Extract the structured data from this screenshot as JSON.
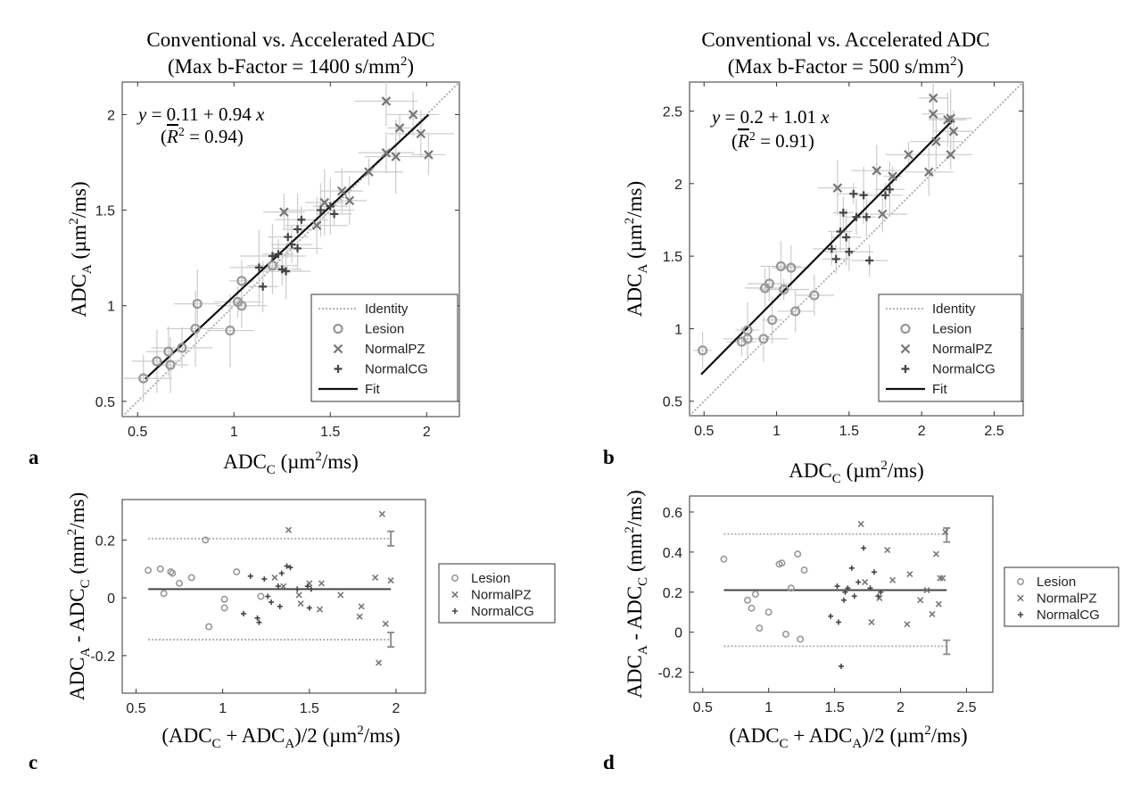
{
  "chart_data": [
    {
      "id": "a",
      "panel_label": "a",
      "type": "scatter",
      "title_line1": "Conventional vs. Accelerated ADC",
      "title_line2_pre": "(Max b-Factor = 1400 s/mm",
      "title_line2_sup": "2",
      "title_line2_post": ")",
      "xlabel": {
        "main": "ADC",
        "sub": "C",
        "rest": " (µm",
        "sup": "2",
        "tail": "/ms)"
      },
      "ylabel": {
        "main": "ADC",
        "sub": "A",
        "rest": " (µm",
        "sup": "2",
        "tail": "/ms)"
      },
      "xlim": [
        0.42,
        2.17
      ],
      "ylim": [
        0.42,
        2.17
      ],
      "xticks": [
        0.5,
        1,
        1.5,
        2
      ],
      "yticks": [
        0.5,
        1,
        1.5,
        2
      ],
      "xtick_labels": [
        "0.5",
        "1",
        "1.5",
        "2"
      ],
      "ytick_labels": [
        "0.5",
        "1",
        "1.5",
        "2"
      ],
      "fit": {
        "intercept": 0.11,
        "slope": 0.94,
        "x_range": [
          0.54,
          2.01
        ]
      },
      "equation": {
        "y": "y",
        "eq": " = 0.11 + 0.94 ",
        "x": "x"
      },
      "r2_text": {
        "open": "(",
        "r": "R",
        "rest": " = 0.94)",
        "sup": "2"
      },
      "legend": [
        "Identity",
        "Lesion",
        "NormalPZ",
        "NormalCG",
        "Fit"
      ],
      "series": [
        {
          "name": "Lesion",
          "points": [
            [
              0.53,
              0.62
            ],
            [
              0.6,
              0.71
            ],
            [
              0.66,
              0.76
            ],
            [
              0.67,
              0.69
            ],
            [
              0.73,
              0.78
            ],
            [
              0.8,
              0.88
            ],
            [
              0.81,
              1.01
            ],
            [
              0.98,
              0.87
            ],
            [
              1.02,
              1.02
            ],
            [
              1.04,
              1.13
            ],
            [
              1.04,
              1.0
            ],
            [
              1.2,
              1.21
            ]
          ]
        },
        {
          "name": "NormalPZ",
          "points": [
            [
              1.26,
              1.49
            ],
            [
              1.43,
              1.42
            ],
            [
              1.47,
              1.54
            ],
            [
              1.56,
              1.6
            ],
            [
              1.6,
              1.55
            ],
            [
              1.7,
              1.7
            ],
            [
              1.79,
              1.8
            ],
            [
              1.79,
              2.07
            ],
            [
              1.84,
              1.78
            ],
            [
              1.86,
              1.93
            ],
            [
              1.93,
              2.0
            ],
            [
              1.97,
              1.9
            ],
            [
              2.01,
              1.79
            ]
          ]
        },
        {
          "name": "NormalCG",
          "points": [
            [
              1.13,
              1.2
            ],
            [
              1.15,
              1.1
            ],
            [
              1.2,
              1.26
            ],
            [
              1.23,
              1.27
            ],
            [
              1.25,
              1.19
            ],
            [
              1.27,
              1.18
            ],
            [
              1.28,
              1.36
            ],
            [
              1.3,
              1.32
            ],
            [
              1.33,
              1.3
            ],
            [
              1.33,
              1.4
            ],
            [
              1.35,
              1.45
            ],
            [
              1.45,
              1.5
            ],
            [
              1.5,
              1.52
            ],
            [
              1.52,
              1.48
            ]
          ]
        }
      ]
    },
    {
      "id": "b",
      "panel_label": "b",
      "type": "scatter",
      "title_line1": "Conventional vs. Accelerated ADC",
      "title_line2_pre": "(Max b-Factor = 500 s/mm",
      "title_line2_sup": "2",
      "title_line2_post": ")",
      "xlabel": {
        "main": "ADC",
        "sub": "C",
        "rest": " (µm",
        "sup": "2",
        "tail": "/ms)"
      },
      "ylabel": {
        "main": "ADC",
        "sub": "A",
        "rest": " (µm",
        "sup": "2",
        "tail": "/ms)"
      },
      "xlim": [
        0.4,
        2.7
      ],
      "ylim": [
        0.4,
        2.7
      ],
      "xticks": [
        0.5,
        1,
        1.5,
        2,
        2.5
      ],
      "yticks": [
        0.5,
        1,
        1.5,
        2,
        2.5
      ],
      "xtick_labels": [
        "0.5",
        "1",
        "1.5",
        "2",
        "2.5"
      ],
      "ytick_labels": [
        "0.5",
        "1",
        "1.5",
        "2",
        "2.5"
      ],
      "fit": {
        "intercept": 0.2,
        "slope": 1.01,
        "x_range": [
          0.48,
          2.22
        ]
      },
      "equation": {
        "y": "y",
        "eq": " = 0.2 + 1.01 ",
        "x": "x"
      },
      "r2_text": {
        "open": "(",
        "r": "R",
        "rest": " = 0.91)",
        "sup": "2"
      },
      "legend": [
        "Identity",
        "Lesion",
        "NormalPZ",
        "NormalCG",
        "Fit"
      ],
      "series": [
        {
          "name": "Lesion",
          "points": [
            [
              0.49,
              0.85
            ],
            [
              0.76,
              0.91
            ],
            [
              0.8,
              0.93
            ],
            [
              0.8,
              0.99
            ],
            [
              0.91,
              0.93
            ],
            [
              0.92,
              1.28
            ],
            [
              0.95,
              1.31
            ],
            [
              0.97,
              1.06
            ],
            [
              1.03,
              1.43
            ],
            [
              1.05,
              1.27
            ],
            [
              1.1,
              1.42
            ],
            [
              1.13,
              1.12
            ],
            [
              1.26,
              1.23
            ]
          ]
        },
        {
          "name": "NormalPZ",
          "points": [
            [
              1.42,
              1.97
            ],
            [
              1.69,
              2.09
            ],
            [
              1.73,
              1.79
            ],
            [
              1.8,
              2.05
            ],
            [
              1.91,
              2.2
            ],
            [
              2.05,
              2.08
            ],
            [
              2.08,
              2.59
            ],
            [
              2.08,
              2.48
            ],
            [
              2.1,
              2.29
            ],
            [
              2.18,
              2.44
            ],
            [
              2.2,
              2.45
            ],
            [
              2.22,
              2.36
            ],
            [
              2.2,
              2.2
            ]
          ]
        },
        {
          "name": "NormalCG",
          "points": [
            [
              1.38,
              1.55
            ],
            [
              1.41,
              1.48
            ],
            [
              1.44,
              1.67
            ],
            [
              1.46,
              1.8
            ],
            [
              1.48,
              1.63
            ],
            [
              1.5,
              1.53
            ],
            [
              1.53,
              1.93
            ],
            [
              1.55,
              1.77
            ],
            [
              1.6,
              1.92
            ],
            [
              1.62,
              1.77
            ],
            [
              1.64,
              1.47
            ],
            [
              1.75,
              1.92
            ],
            [
              1.78,
              1.96
            ]
          ]
        }
      ]
    },
    {
      "id": "c",
      "panel_label": "c",
      "type": "bland-altman",
      "xlabel": {
        "open": "(ADC",
        "sub1": "C",
        "mid": " + ADC",
        "sub2": "A",
        "rest": ")/2 (µm",
        "sup": "2",
        "tail": "/ms)"
      },
      "ylabel": {
        "main": "ADC",
        "sub1": "A",
        "mid": " - ADC",
        "sub2": "C",
        "rest": " (mm",
        "sup": "2",
        "tail": "/ms)"
      },
      "xlim": [
        0.42,
        2.17
      ],
      "ylim": [
        -0.33,
        0.34
      ],
      "xticks": [
        0.5,
        1,
        1.5,
        2
      ],
      "yticks": [
        -0.2,
        0,
        0.2
      ],
      "xtick_labels": [
        "0.5",
        "1",
        "1.5",
        "2"
      ],
      "ytick_labels": [
        "-0.2",
        "0",
        "0.2"
      ],
      "mean_line": 0.03,
      "upper_loa": 0.205,
      "lower_loa": -0.145,
      "loa_x_range": [
        0.57,
        1.97
      ],
      "ci_x": 1.97,
      "ci_upper": [
        0.18,
        0.23
      ],
      "ci_lower": [
        -0.17,
        -0.12
      ],
      "legend": [
        "Lesion",
        "NormalPZ",
        "NormalCG"
      ],
      "series": [
        {
          "name": "Lesion",
          "points": [
            [
              0.57,
              0.095
            ],
            [
              0.64,
              0.1
            ],
            [
              0.66,
              0.015
            ],
            [
              0.7,
              0.09
            ],
            [
              0.71,
              0.085
            ],
            [
              0.75,
              0.05
            ],
            [
              0.82,
              0.07
            ],
            [
              0.9,
              0.2
            ],
            [
              0.92,
              -0.1
            ],
            [
              1.01,
              -0.005
            ],
            [
              1.01,
              -0.035
            ],
            [
              1.08,
              0.09
            ],
            [
              1.22,
              0.005
            ]
          ]
        },
        {
          "name": "NormalPZ",
          "points": [
            [
              1.3,
              0.07
            ],
            [
              1.35,
              0.04
            ],
            [
              1.38,
              0.235
            ],
            [
              1.44,
              0.01
            ],
            [
              1.45,
              -0.02
            ],
            [
              1.5,
              0.05
            ],
            [
              1.56,
              -0.04
            ],
            [
              1.57,
              0.05
            ],
            [
              1.68,
              0.01
            ],
            [
              1.79,
              -0.065
            ],
            [
              1.8,
              -0.03
            ],
            [
              1.88,
              0.07
            ],
            [
              1.9,
              -0.225
            ],
            [
              1.92,
              0.29
            ],
            [
              1.94,
              -0.09
            ],
            [
              1.97,
              0.06
            ]
          ]
        },
        {
          "name": "NormalCG",
          "points": [
            [
              1.12,
              -0.055
            ],
            [
              1.16,
              0.075
            ],
            [
              1.2,
              -0.07
            ],
            [
              1.21,
              -0.085
            ],
            [
              1.24,
              0.065
            ],
            [
              1.26,
              0.005
            ],
            [
              1.28,
              -0.015
            ],
            [
              1.32,
              0.04
            ],
            [
              1.33,
              -0.03
            ],
            [
              1.34,
              0.085
            ],
            [
              1.37,
              0.11
            ],
            [
              1.39,
              0.105
            ],
            [
              1.43,
              0.03
            ],
            [
              1.49,
              0.04
            ],
            [
              1.51,
              0.03
            ],
            [
              1.5,
              -0.035
            ]
          ]
        }
      ]
    },
    {
      "id": "d",
      "panel_label": "d",
      "type": "bland-altman",
      "xlabel": {
        "open": "(ADC",
        "sub1": "C",
        "mid": " + ADC",
        "sub2": "A",
        "rest": ")/2 (µm",
        "sup": "2",
        "tail": "/ms)"
      },
      "ylabel": {
        "main": "ADC",
        "sub1": "A",
        "mid": " - ADC",
        "sub2": "C",
        "rest": " (mm",
        "sup": "2",
        "tail": "/ms)"
      },
      "xlim": [
        0.4,
        2.7
      ],
      "ylim": [
        -0.3,
        0.68
      ],
      "xticks": [
        0.5,
        1,
        1.5,
        2,
        2.5
      ],
      "yticks": [
        -0.2,
        0,
        0.2,
        0.4,
        0.6
      ],
      "xtick_labels": [
        "0.5",
        "1",
        "1.5",
        "2",
        "2.5"
      ],
      "ytick_labels": [
        "-0.2",
        "0",
        "0.2",
        "0.4",
        "0.6"
      ],
      "mean_line": 0.21,
      "upper_loa": 0.49,
      "lower_loa": -0.07,
      "loa_x_range": [
        0.66,
        2.35
      ],
      "ci_x": 2.35,
      "ci_upper": [
        0.45,
        0.52
      ],
      "ci_lower": [
        -0.11,
        -0.04
      ],
      "legend": [
        "Lesion",
        "NormalPZ",
        "NormalCG"
      ],
      "series": [
        {
          "name": "Lesion",
          "points": [
            [
              0.66,
              0.365
            ],
            [
              0.84,
              0.16
            ],
            [
              0.87,
              0.12
            ],
            [
              0.9,
              0.19
            ],
            [
              0.93,
              0.02
            ],
            [
              1.0,
              0.1
            ],
            [
              1.08,
              0.34
            ],
            [
              1.1,
              0.345
            ],
            [
              1.13,
              -0.01
            ],
            [
              1.17,
              0.22
            ],
            [
              1.22,
              0.39
            ],
            [
              1.24,
              -0.035
            ],
            [
              1.27,
              0.31
            ]
          ]
        },
        {
          "name": "NormalPZ",
          "points": [
            [
              1.7,
              0.54
            ],
            [
              1.73,
              0.25
            ],
            [
              1.78,
              0.05
            ],
            [
              1.84,
              0.17
            ],
            [
              1.9,
              0.41
            ],
            [
              1.94,
              0.26
            ],
            [
              2.05,
              0.04
            ],
            [
              2.07,
              0.29
            ],
            [
              2.15,
              0.16
            ],
            [
              2.2,
              0.21
            ],
            [
              2.24,
              0.09
            ],
            [
              2.27,
              0.39
            ],
            [
              2.29,
              0.14
            ],
            [
              2.3,
              0.27
            ],
            [
              2.32,
              0.27
            ],
            [
              2.34,
              0.5
            ]
          ]
        },
        {
          "name": "NormalCG",
          "points": [
            [
              1.47,
              0.08
            ],
            [
              1.52,
              0.23
            ],
            [
              1.53,
              0.05
            ],
            [
              1.55,
              -0.17
            ],
            [
              1.57,
              0.16
            ],
            [
              1.58,
              0.2
            ],
            [
              1.6,
              0.22
            ],
            [
              1.63,
              0.32
            ],
            [
              1.65,
              0.18
            ],
            [
              1.68,
              0.25
            ],
            [
              1.72,
              0.42
            ],
            [
              1.77,
              0.22
            ],
            [
              1.8,
              0.3
            ],
            [
              1.83,
              0.18
            ],
            [
              1.85,
              0.2
            ]
          ]
        }
      ]
    }
  ]
}
